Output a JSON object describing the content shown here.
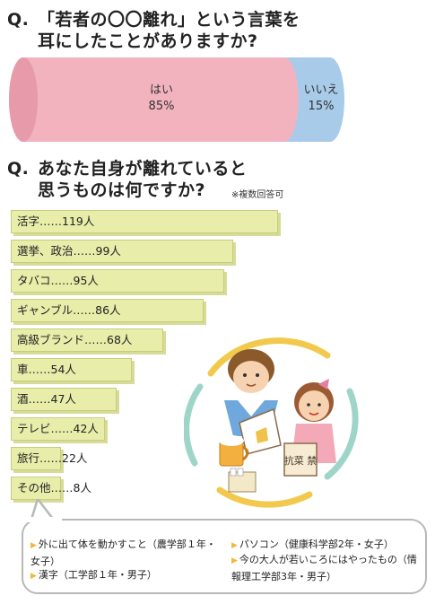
{
  "q1": {
    "q_prefix": "Q.",
    "line1": "「若者の〇〇離れ」という言葉を",
    "line2": "耳にしたことがありますか?"
  },
  "chart_data": [
    {
      "type": "pie",
      "categories": [
        "はい",
        "いいえ"
      ],
      "values": [
        85,
        15
      ],
      "value_labels": [
        "85%",
        "15%"
      ],
      "colors": [
        "#f2b3bf",
        "#a8cbe9"
      ]
    },
    {
      "type": "bar",
      "categories": [
        "活字",
        "選挙、政治",
        "タバコ",
        "ギャンブル",
        "高級ブランド",
        "車",
        "酒",
        "テレビ",
        "旅行",
        "その他"
      ],
      "values": [
        119,
        99,
        95,
        86,
        68,
        54,
        47,
        42,
        22,
        8
      ],
      "labels": [
        "活字……119人",
        "選挙、政治……99人",
        "タバコ……95人",
        "ギャンブル……86人",
        "高級ブランド……68人",
        "車……54人",
        "酒……47人",
        "テレビ……42人",
        "旅行……22人",
        "その他……8人"
      ],
      "colors": [
        "#e9edaa"
      ]
    }
  ],
  "q2": {
    "q_prefix": "Q.",
    "line1": "あなた自身が離れていると",
    "line2": "思うものは何ですか?",
    "note": "※複数回答可"
  },
  "comments": [
    "外に出て体を動かすこと（農学部１年・女子）",
    "漢字（工学部１年・男子）",
    "パソコン（健康科学部2年・女子）",
    "今の大人が若いころにはやったもの（情報理工学部3年・男子）"
  ],
  "illustration": {
    "sign_text": "抗菜 禁"
  }
}
